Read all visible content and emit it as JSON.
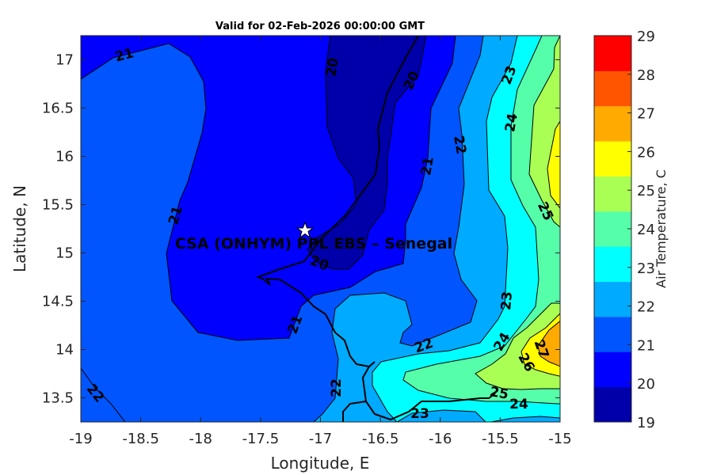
{
  "title": "Valid for 02-Feb-2026 00:00:00 GMT",
  "station": {
    "label": "CSA (ONHYM) PPL EBS  – Senegal",
    "marker": "star-icon"
  },
  "chart_data": {
    "type": "filled-contour-map",
    "title": "Valid for 02-Feb-2026 00:00:00 GMT",
    "xlabel": "Longitude, E",
    "ylabel": "Latitude, N",
    "xlim": [
      -19,
      -15
    ],
    "ylim": [
      13.25,
      17.25
    ],
    "xticks": [
      "-19",
      "-18.5",
      "-18",
      "-17.5",
      "-17",
      "-16.5",
      "-16",
      "-15.5",
      "-15"
    ],
    "yticks": [
      "17",
      "16.5",
      "16",
      "15.5",
      "15",
      "14.5",
      "14",
      "13.5"
    ],
    "colorbar": {
      "label": "Air Temperature, C",
      "range": [
        19,
        29
      ],
      "ticks": [
        "19",
        "20",
        "21",
        "22",
        "23",
        "24",
        "25",
        "26",
        "27",
        "28",
        "29"
      ],
      "colors": [
        "#0000AA",
        "#0000FF",
        "#0055FF",
        "#00AAFF",
        "#00FFFF",
        "#55FFAA",
        "#AAFF55",
        "#FFFF00",
        "#FFAA00",
        "#FF5500",
        "#FF0000"
      ]
    },
    "contour_labels": [
      "21",
      "20",
      "20",
      "23",
      "24",
      "22",
      "21",
      "25",
      "21",
      "20",
      "23",
      "21",
      "24",
      "22",
      "27",
      "26",
      "22",
      "22",
      "25",
      "24",
      "23"
    ]
  }
}
